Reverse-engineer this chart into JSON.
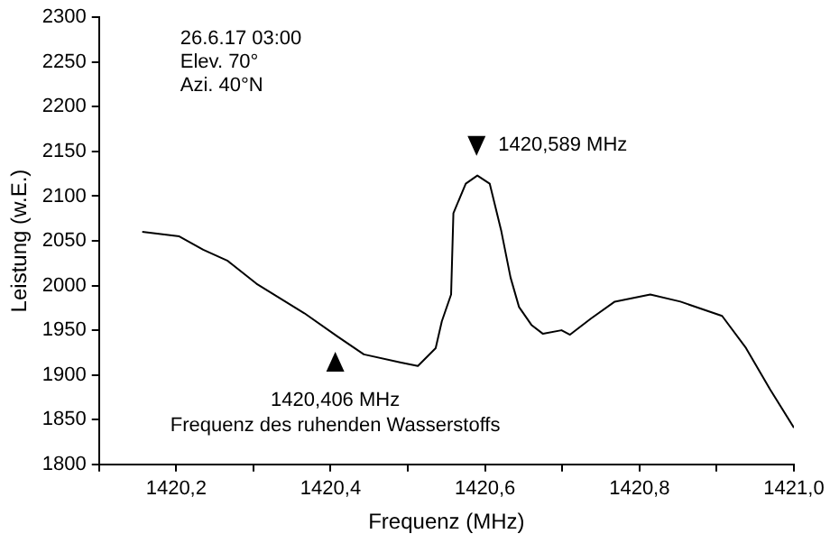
{
  "chart_data": {
    "type": "line",
    "xlabel": "Frequenz (MHz)",
    "ylabel": "Leistung (w.E.)",
    "x": [
      1420.156,
      1420.204,
      1420.235,
      1420.266,
      1420.304,
      1420.366,
      1420.409,
      1420.443,
      1420.49,
      1420.513,
      1420.536,
      1420.544,
      1420.556,
      1420.559,
      1420.575,
      1420.59,
      1420.606,
      1420.621,
      1420.633,
      1420.644,
      1420.66,
      1420.675,
      1420.699,
      1420.71,
      1420.737,
      1420.768,
      1420.814,
      1420.853,
      1420.907,
      1420.938,
      1420.969,
      1421.0
    ],
    "series": [
      {
        "color": "#000000",
        "values": [
          2060,
          2055,
          2040,
          2028,
          2002,
          1969,
          1943,
          1923,
          1914,
          1910,
          1930,
          1960,
          1990,
          2081,
          2114,
          2123,
          2114,
          2061,
          2009,
          1976,
          1956,
          1946,
          1950,
          1945,
          1963,
          1982,
          1990,
          1982,
          1966,
          1930,
          1884,
          1841
        ]
      }
    ],
    "xlim": [
      1420.1,
      1421.0
    ],
    "xticks": [
      {
        "value": 1420.1,
        "label": null
      },
      {
        "value": 1420.2,
        "label": "1420,2"
      },
      {
        "value": 1420.3,
        "label": null
      },
      {
        "value": 1420.4,
        "label": "1420,4"
      },
      {
        "value": 1420.5,
        "label": null
      },
      {
        "value": 1420.6,
        "label": "1420,6"
      },
      {
        "value": 1420.7,
        "label": null
      },
      {
        "value": 1420.8,
        "label": "1420,8"
      },
      {
        "value": 1420.9,
        "label": null
      },
      {
        "value": 1421.0,
        "label": "1421,0"
      }
    ],
    "ylim": [
      1800,
      2300
    ],
    "yticks": [
      1800,
      1850,
      1900,
      1950,
      2000,
      2050,
      2100,
      2150,
      2200,
      2250,
      2300
    ],
    "grid": false,
    "legend": false,
    "marker": "none",
    "line_style": "solid",
    "annotations": [
      "26.6.17 03:00",
      "Elev. 70°",
      "Azi. 40°N",
      {
        "text": "1420,589 MHz",
        "x": 1420.589,
        "y": 2123
      },
      {
        "text": "1420,406 MHz",
        "x": 1420.406,
        "y": 1940
      },
      "Frequenz des ruhenden Wasserstoffs"
    ]
  }
}
